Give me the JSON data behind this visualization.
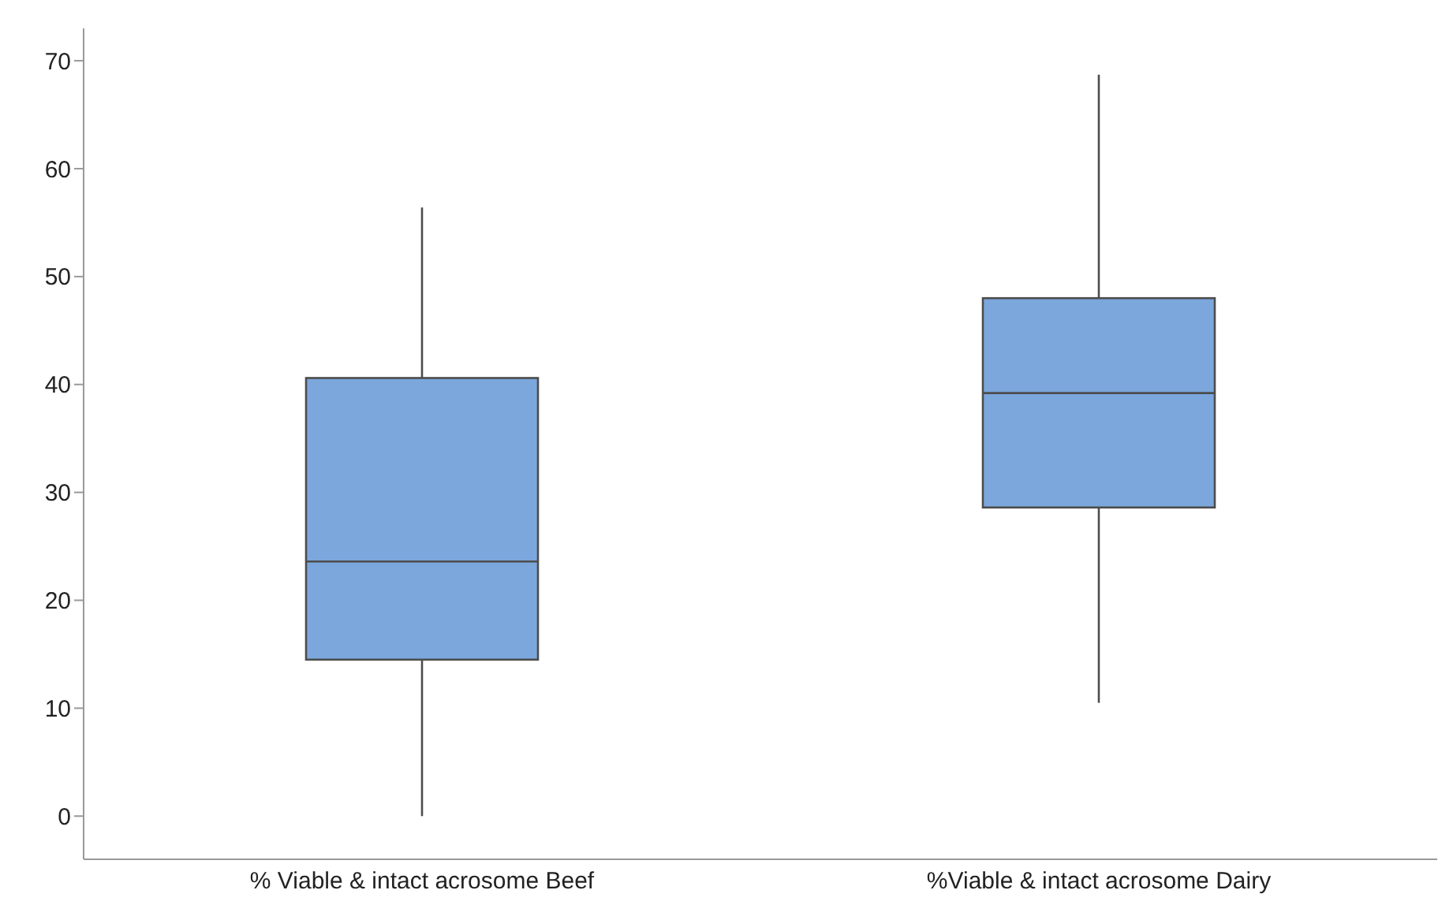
{
  "chart_data": {
    "type": "box",
    "categories": [
      "% Viable & intact acrosome Beef",
      "%Viable & intact acrosome Dairy"
    ],
    "boxes": [
      {
        "low": 0,
        "q1": 14.5,
        "median": 23.6,
        "q3": 40.6,
        "high": 56.4
      },
      {
        "low": 10.5,
        "q1": 28.6,
        "median": 39.2,
        "q3": 48.0,
        "high": 68.7
      }
    ],
    "color": "#7ba7dc",
    "ylim": [
      -4,
      73
    ],
    "yticks": [
      0,
      10,
      20,
      30,
      40,
      50,
      60,
      70
    ]
  }
}
